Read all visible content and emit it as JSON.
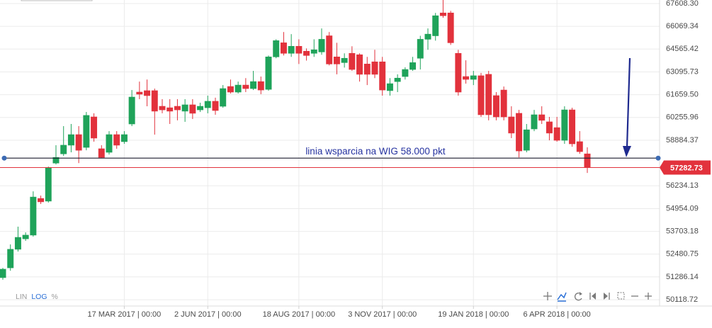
{
  "chart_data": {
    "type": "candlestick",
    "log_scale": true,
    "grid": true,
    "up_color": "#1fa35a",
    "down_color": "#e2323c",
    "categories": [
      null,
      null,
      null,
      null,
      null,
      null,
      null,
      null,
      null,
      null,
      null,
      null,
      null,
      null,
      null,
      null,
      "17 MAR 2017 | 00:00",
      null,
      null,
      null,
      null,
      null,
      null,
      null,
      null,
      null,
      null,
      "2 JUN 2017 | 00:00",
      null,
      null,
      null,
      null,
      null,
      null,
      null,
      null,
      null,
      null,
      null,
      "18 AUG 2017 | 00:00",
      null,
      null,
      null,
      null,
      null,
      null,
      null,
      null,
      null,
      null,
      "3 NOV 2017 | 00:00",
      null,
      null,
      null,
      null,
      null,
      null,
      null,
      null,
      null,
      null,
      null,
      "19 JAN 2018 | 00:00",
      null,
      null,
      null,
      null,
      null,
      null,
      null,
      null,
      null,
      null,
      "6 APR 2018 | 00:00",
      null,
      null,
      null,
      null
    ],
    "open": [
      51250,
      51760,
      52740,
      53300,
      53500,
      55520,
      55370,
      57540,
      58080,
      58590,
      59220,
      58460,
      60290,
      58380,
      58170,
      59220,
      58800,
      59860,
      61820,
      61910,
      61910,
      60940,
      60850,
      60940,
      60640,
      61030,
      60720,
      60850,
      61250,
      60940,
      62170,
      61820,
      62260,
      62040,
      62480,
      61990,
      64060,
      64980,
      64290,
      64750,
      64430,
      64290,
      64380,
      65440,
      64060,
      63690,
      64290,
      64200,
      63600,
      63740,
      63740,
      61910,
      62480,
      62800,
      63250,
      63970,
      65210,
      65440,
      66970,
      66970,
      64290,
      62800,
      62620,
      62850,
      62940,
      61600,
      61950,
      60290,
      60510,
      58290,
      59560,
      60420,
      59990,
      59640,
      58880,
      60720,
      58800,
      58080
    ],
    "high": [
      51760,
      53000,
      53960,
      53650,
      55920,
      55680,
      57340,
      58590,
      59730,
      59860,
      59730,
      60590,
      60510,
      58590,
      59430,
      59430,
      59430,
      61950,
      62480,
      62610,
      62040,
      61380,
      61380,
      61380,
      61380,
      61380,
      61160,
      61600,
      61470,
      62260,
      62610,
      62480,
      62700,
      63160,
      62800,
      64150,
      65210,
      65690,
      65550,
      65210,
      64610,
      65210,
      65930,
      65690,
      64980,
      64290,
      64750,
      64290,
      64060,
      64520,
      64060,
      62700,
      62940,
      63390,
      64060,
      65440,
      65930,
      66970,
      67850,
      67110,
      64520,
      63840,
      63160,
      63030,
      63160,
      61820,
      62170,
      60940,
      60720,
      59860,
      60720,
      60940,
      60290,
      60290,
      60940,
      60850,
      59430,
      58460
    ],
    "low": [
      51140,
      51610,
      52620,
      53190,
      53420,
      55210,
      55290,
      57460,
      57960,
      58170,
      57540,
      58290,
      58800,
      57830,
      58040,
      58380,
      58670,
      59730,
      61380,
      60940,
      59220,
      60510,
      59860,
      60080,
      59990,
      60160,
      60590,
      60510,
      60420,
      60850,
      61730,
      61730,
      61820,
      61950,
      61690,
      61910,
      63970,
      64150,
      64060,
      63600,
      63820,
      64060,
      64200,
      63510,
      62940,
      63370,
      63160,
      62480,
      62260,
      62700,
      61600,
      61600,
      61820,
      62610,
      63160,
      63250,
      64520,
      65120,
      66640,
      64840,
      61600,
      62350,
      62260,
      60290,
      60080,
      60080,
      60080,
      59010,
      57870,
      58170,
      59430,
      59860,
      58880,
      58800,
      58670,
      58500,
      58080,
      56970
    ],
    "close": [
      51690,
      52740,
      53380,
      53500,
      55600,
      55330,
      57260,
      57870,
      58590,
      59220,
      58290,
      60380,
      59010,
      57870,
      59220,
      58590,
      59220,
      61510,
      61690,
      61600,
      60640,
      60720,
      60640,
      60720,
      61030,
      60510,
      60940,
      61250,
      60680,
      62040,
      61820,
      62260,
      62040,
      62480,
      61950,
      64060,
      65120,
      64290,
      64750,
      64290,
      64150,
      64520,
      65210,
      63600,
      63600,
      63970,
      63250,
      62940,
      62940,
      62940,
      61950,
      62350,
      62700,
      63250,
      63690,
      65210,
      65550,
      66780,
      66780,
      64980,
      61820,
      62620,
      62850,
      60420,
      60420,
      60290,
      60290,
      59310,
      58250,
      59510,
      60420,
      60080,
      59310,
      58880,
      60720,
      58670,
      58210,
      57282.73
    ],
    "ylim": [
      49800,
      67850
    ],
    "yticks": [
      {
        "value": 67608.3,
        "label": "67608.30"
      },
      66069.34,
      64565.42,
      63095.73,
      {
        "value": 61659.5,
        "label": "61659.50"
      },
      60255.96,
      58884.37,
      56234.13,
      54954.09,
      53703.18,
      52480.75,
      51286.14,
      50118.72
    ],
    "support_level": 57830,
    "annotation": "linia wsparcia na WIG 58.000 pkt",
    "scale_buttons": [
      "LIN",
      "LOG",
      "%"
    ]
  }
}
